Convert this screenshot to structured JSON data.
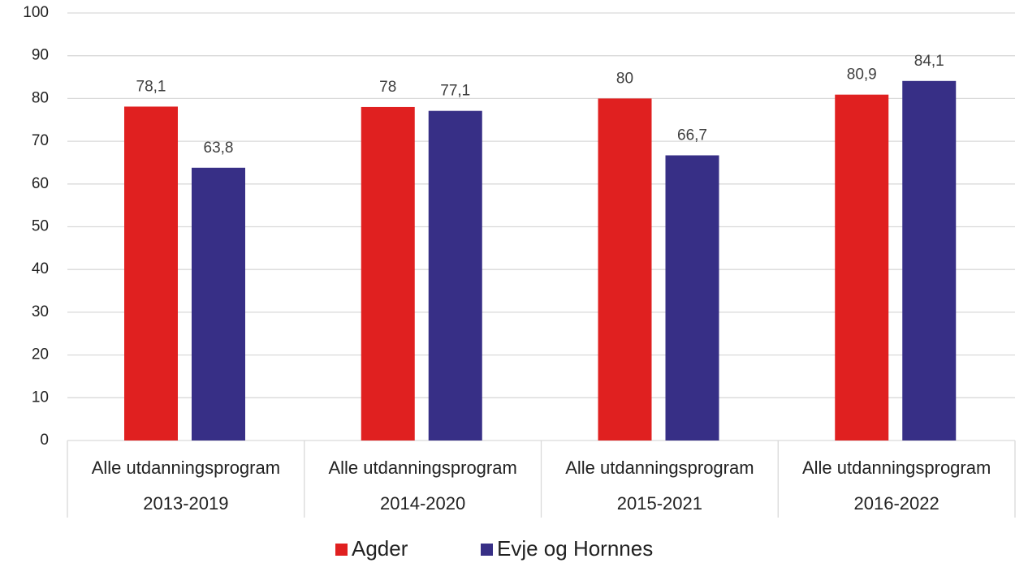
{
  "chart_data": {
    "type": "bar",
    "categories": [
      "Alle utdanningsprogram",
      "Alle utdanningsprogram",
      "Alle utdanningsprogram",
      "Alle utdanningsprogram"
    ],
    "category_groups": [
      "2013-2019",
      "2014-2020",
      "2015-2021",
      "2016-2022"
    ],
    "series": [
      {
        "name": "Agder",
        "color": "#e02020",
        "values": [
          78.1,
          78,
          80,
          80.9
        ],
        "value_labels": [
          "78,1",
          "78",
          "80",
          "80,9"
        ]
      },
      {
        "name": "Evje og Hornnes",
        "color": "#372f86",
        "values": [
          63.8,
          77.1,
          66.7,
          84.1
        ],
        "value_labels": [
          "63,8",
          "77,1",
          "66,7",
          "84,1"
        ]
      }
    ],
    "ylim": [
      0,
      100
    ],
    "yticks": [
      0,
      10,
      20,
      30,
      40,
      50,
      60,
      70,
      80,
      90,
      100
    ],
    "grid": true,
    "legend": "bottom"
  }
}
